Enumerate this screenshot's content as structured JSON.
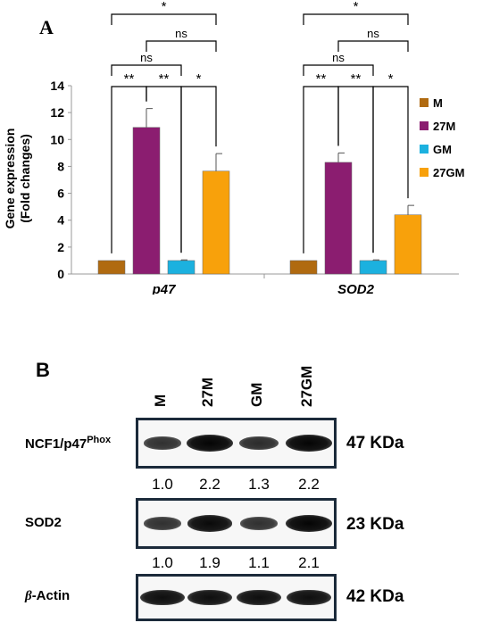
{
  "panel_a_letter": "A",
  "panel_b_letter": "B",
  "colors": {
    "M": "#b06a10",
    "27M": "#8b1d70",
    "GM": "#1cb1df",
    "27GM": "#f8a10b"
  },
  "chart_data": {
    "type": "bar",
    "ylabel_line1": "Gene expression",
    "ylabel_line2": "(Fold changes)",
    "ylim": [
      0,
      14
    ],
    "yticks": [
      "0",
      "2",
      "4",
      "6",
      "8",
      "10",
      "12",
      "14"
    ],
    "categories": [
      "p47",
      "SOD2"
    ],
    "legend_position": "right",
    "series": [
      {
        "name": "M",
        "values": [
          1.0,
          1.0
        ],
        "errors": [
          0.0,
          0.0
        ]
      },
      {
        "name": "27M",
        "values": [
          10.9,
          8.3
        ],
        "errors": [
          1.4,
          0.7
        ]
      },
      {
        "name": "GM",
        "values": [
          1.0,
          1.0
        ],
        "errors": [
          0.05,
          0.05
        ]
      },
      {
        "name": "27GM",
        "values": [
          7.65,
          4.4
        ],
        "errors": [
          1.3,
          0.7
        ]
      }
    ],
    "significance": [
      {
        "from": 0,
        "to": 1,
        "label": "**",
        "level": 0
      },
      {
        "from": 1,
        "to": 2,
        "label": "**",
        "level": 0
      },
      {
        "from": 2,
        "to": 3,
        "label": "*",
        "level": 0
      },
      {
        "from": 0,
        "to": 2,
        "label": "ns",
        "level": 1
      },
      {
        "from": 1,
        "to": 3,
        "label": "ns",
        "level": 2
      },
      {
        "from": 0,
        "to": 3,
        "label": "*",
        "level": 3
      }
    ]
  },
  "blot": {
    "lanes": [
      "M",
      "27M",
      "GM",
      "27GM"
    ],
    "rows": [
      {
        "label_main": "NCF1/p47",
        "label_sup": "Phox",
        "kda": "47 KDa",
        "intensity": [
          0.55,
          1.0,
          0.6,
          1.0
        ]
      },
      {
        "label_main": "SOD2",
        "label_sup": "",
        "kda": "23 KDa",
        "intensity": [
          0.55,
          0.95,
          0.55,
          1.0
        ]
      },
      {
        "label_main": "-Actin",
        "label_sup": "",
        "label_prefix": "β",
        "kda": "42 KDa",
        "intensity": [
          0.9,
          0.9,
          0.9,
          0.9
        ]
      }
    ],
    "densities": [
      [
        "1.0",
        "2.2",
        "1.3",
        "2.2"
      ],
      [
        "1.0",
        "1.9",
        "1.1",
        "2.1"
      ]
    ]
  }
}
